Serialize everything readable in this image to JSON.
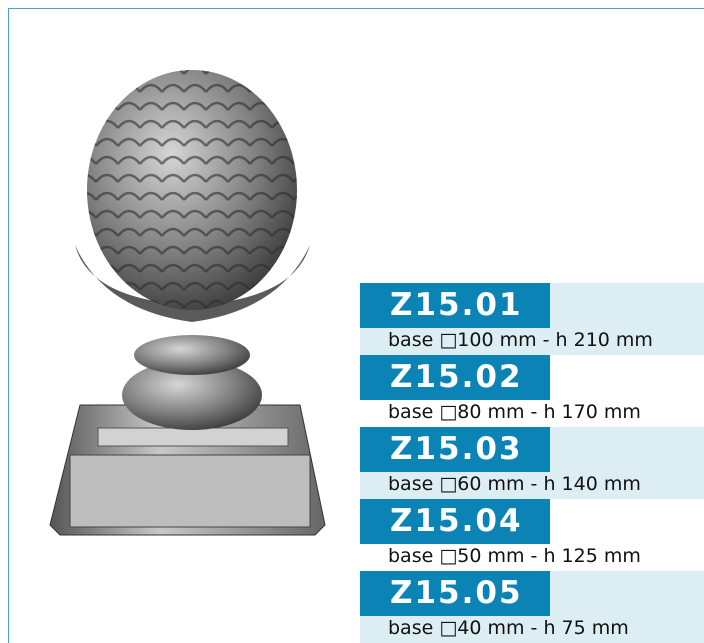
{
  "products": [
    {
      "code": "Z15.01",
      "description": "base □100 mm - h 210 mm"
    },
    {
      "code": "Z15.02",
      "description": "base □80 mm - h 170 mm"
    },
    {
      "code": "Z15.03",
      "description": "base □60 mm - h 140 mm"
    },
    {
      "code": "Z15.04",
      "description": "base □50 mm - h 125 mm"
    },
    {
      "code": "Z15.05",
      "description": "base □40 mm - h 75 mm"
    }
  ]
}
